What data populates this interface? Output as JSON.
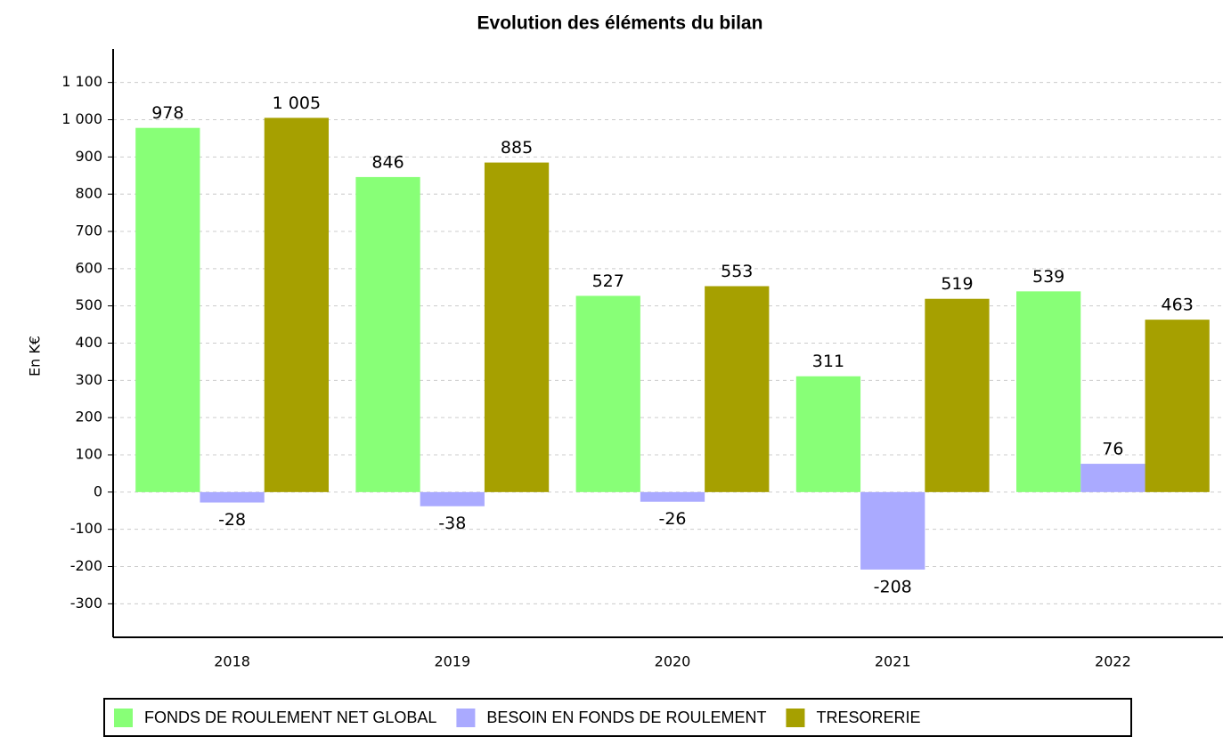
{
  "chart_data": {
    "type": "bar",
    "title": "Evolution des éléments du bilan",
    "y_label": "En K€",
    "categories": [
      "2018",
      "2019",
      "2020",
      "2021",
      "2022"
    ],
    "series": [
      {
        "name": "FONDS DE ROULEMENT NET GLOBAL",
        "color": "#88ff77",
        "values": [
          978,
          846,
          527,
          311,
          539
        ]
      },
      {
        "name": "BESOIN EN FONDS DE ROULEMENT",
        "color": "#aaaaff",
        "values": [
          -28,
          -38,
          -26,
          -208,
          76
        ]
      },
      {
        "name": "TRESORERIE",
        "color": "#a6a000",
        "values": [
          1005,
          885,
          553,
          519,
          463
        ],
        "value_labels": [
          "1 005",
          "885",
          "553",
          "519",
          "463"
        ]
      }
    ],
    "ylim": [
      -390,
      1190
    ],
    "yticks": [
      -300,
      -200,
      -100,
      0,
      100,
      200,
      300,
      400,
      500,
      600,
      700,
      800,
      900,
      {
        "value": 1000,
        "label": "1 000"
      },
      {
        "value": 1100,
        "label": "1 100"
      }
    ],
    "grid": true,
    "legend": "bottom"
  }
}
